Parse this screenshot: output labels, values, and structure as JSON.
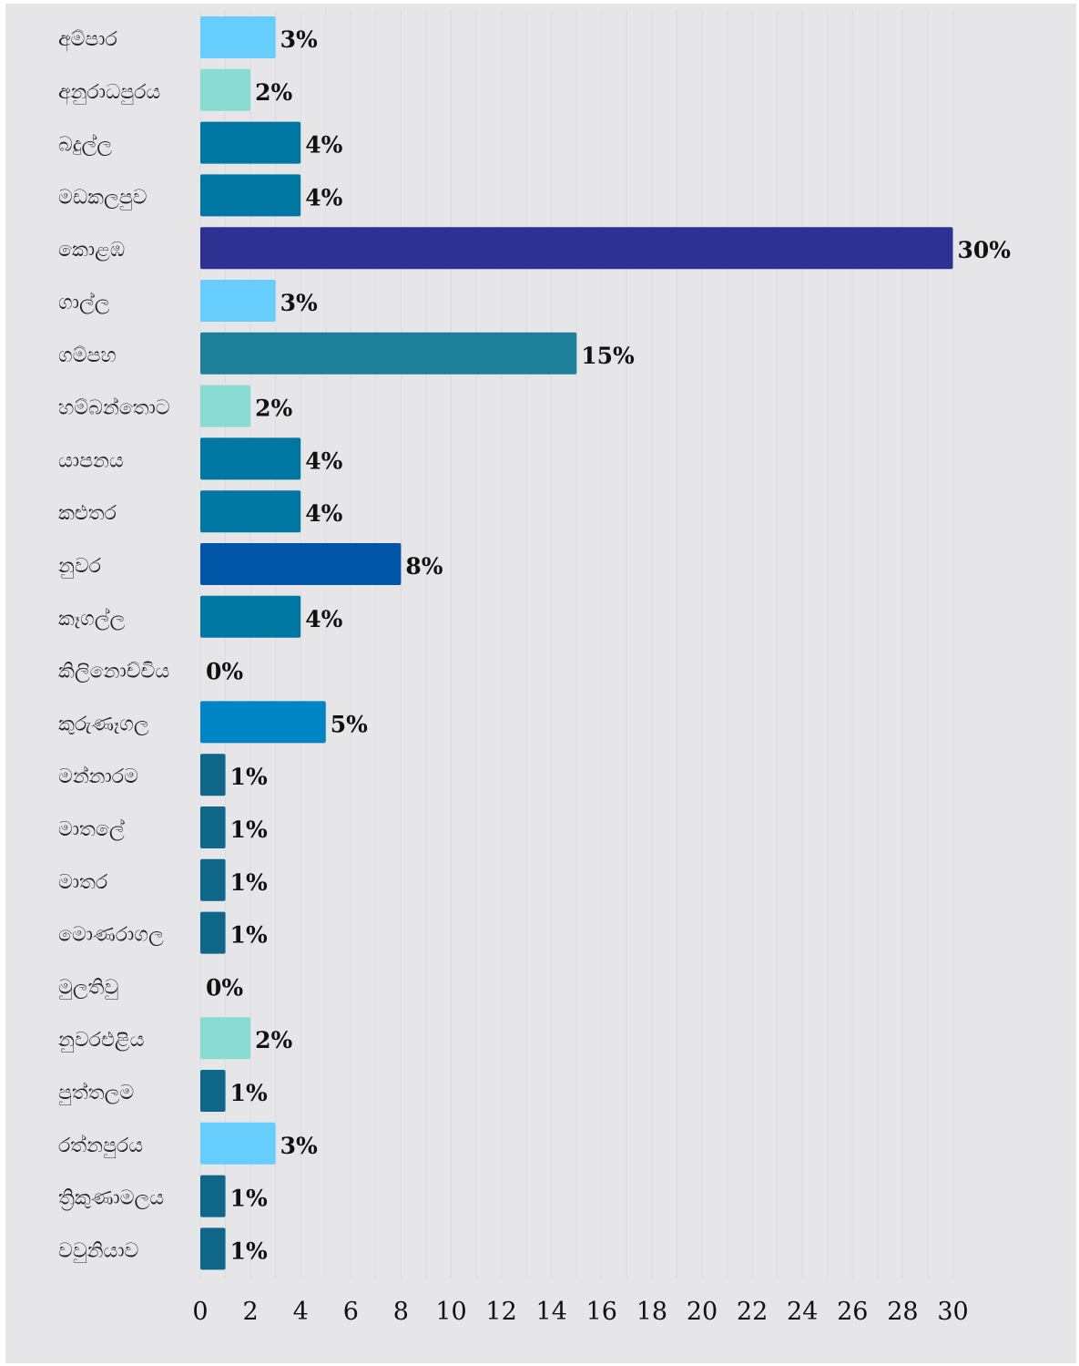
{
  "chart_data": {
    "type": "bar",
    "orientation": "horizontal",
    "categories": [
      "අම්පාර",
      "අනුරාධපුරය",
      "බදුල්ල",
      "මඩකලපුව",
      "කොළඹ",
      "ගාල්ල",
      "ගම්පහ",
      "හම්බන්තොට",
      "යාපනය",
      "කළුතර",
      "නුවර",
      "කෑගල්ල",
      "කිලිනොච්චිය",
      "කුරුණෑගල",
      "මන්නාරම",
      "මාතලේ",
      "මාතර",
      "මොණරාගල",
      "මුලතිවු",
      "නුවරඑළිය",
      "පුත්තලම",
      "රත්නපුරය",
      "ත්‍රිකුණාමලය",
      "වවුනියාව"
    ],
    "values": [
      3,
      2,
      4,
      4,
      30,
      3,
      15,
      2,
      4,
      4,
      8,
      4,
      0,
      5,
      1,
      1,
      1,
      1,
      0,
      2,
      1,
      3,
      1,
      1
    ],
    "value_labels": [
      "3%",
      "2%",
      "4%",
      "4%",
      "30%",
      "3%",
      "15%",
      "2%",
      "4%",
      "4%",
      "8%",
      "4%",
      "0%",
      "5%",
      "1%",
      "1%",
      "1%",
      "1%",
      "0%",
      "2%",
      "1%",
      "3%",
      "1%",
      "1%"
    ],
    "colors": [
      "#66cdfc",
      "#8adcd3",
      "#0077a2",
      "#0077a2",
      "#2e3192",
      "#66cdfc",
      "#1d7f99",
      "#8adcd3",
      "#0077a2",
      "#0077a2",
      "#0055a6",
      "#0077a2",
      "#0077a2",
      "#0085c4",
      "#0f6789",
      "#0f6789",
      "#0f6789",
      "#0f6789",
      "#0f6789",
      "#8adcd3",
      "#0f6789",
      "#66cdfc",
      "#0f6789",
      "#0f6789"
    ],
    "x_ticks": [
      0,
      2,
      4,
      6,
      8,
      10,
      12,
      14,
      16,
      18,
      20,
      22,
      24,
      26,
      28,
      30
    ],
    "xlim": [
      0,
      30
    ],
    "title": "",
    "xlabel": "",
    "ylabel": "",
    "grid": "vertical",
    "legend": "none"
  }
}
